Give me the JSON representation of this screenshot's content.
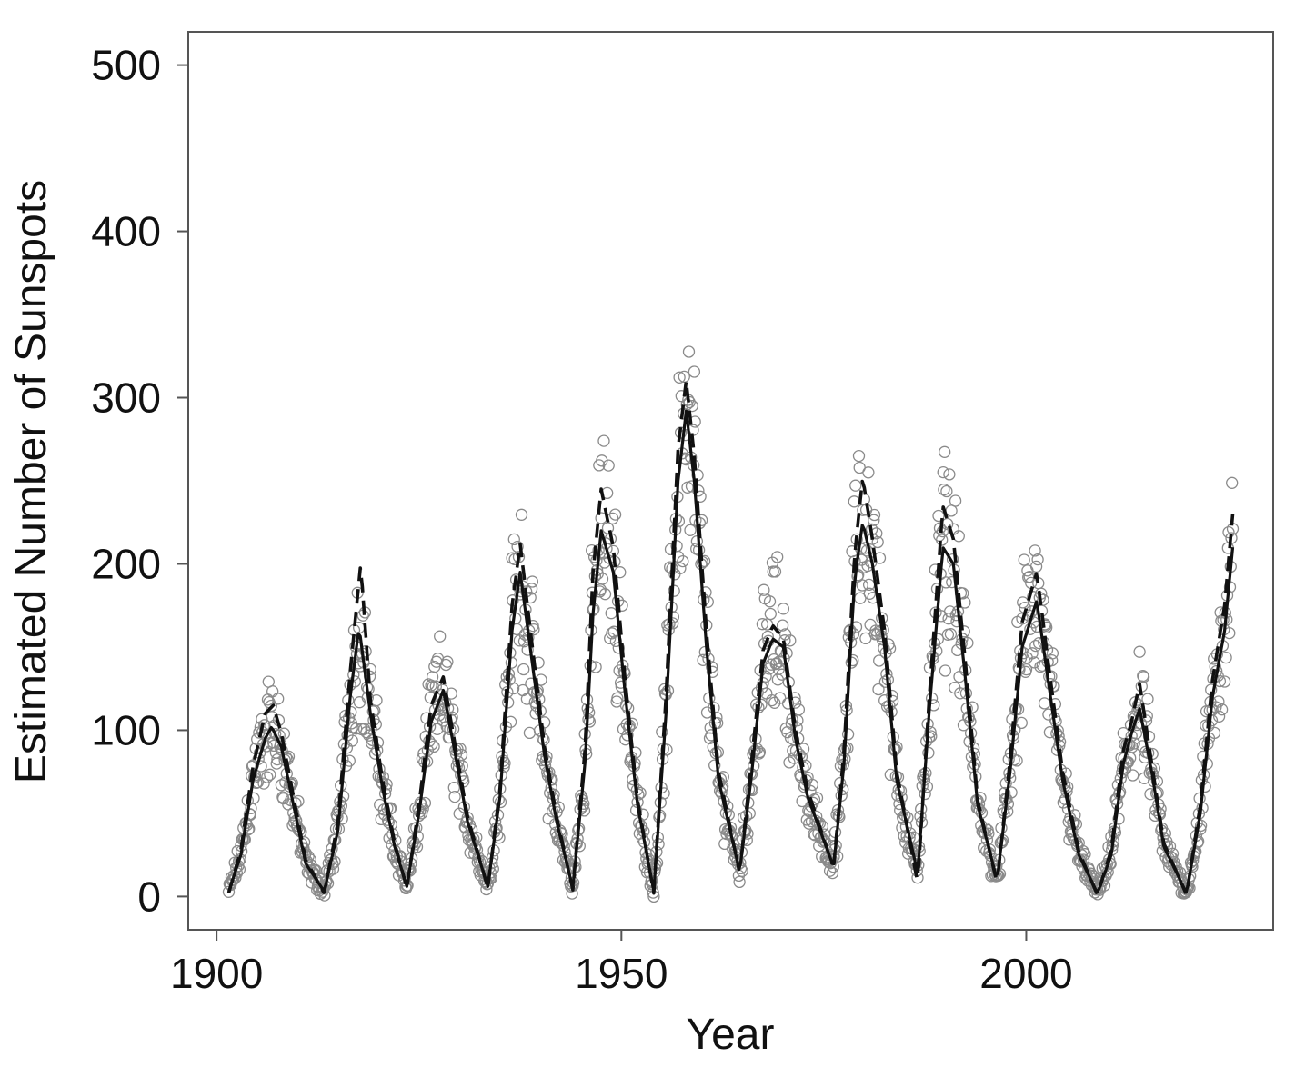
{
  "chart_data": {
    "type": "scatter",
    "title": "",
    "xlabel": "Year",
    "ylabel": "Estimated Number of Sunspots",
    "xlim": [
      1896.5,
      2030.5
    ],
    "ylim": [
      -20,
      520
    ],
    "x_ticks": [
      1900,
      1950,
      2000
    ],
    "y_ticks": [
      0,
      100,
      200,
      300,
      400,
      500
    ],
    "grid": false,
    "legend": "none",
    "colors": {
      "points": "#8a8a8a",
      "lines": "#111111",
      "axes": "#555555"
    },
    "cycle_minima": [
      [
        1901.5,
        3
      ],
      [
        1913.3,
        2
      ],
      [
        1923.5,
        6
      ],
      [
        1933.5,
        6
      ],
      [
        1944.0,
        5
      ],
      [
        1954.0,
        3
      ],
      [
        1964.6,
        14
      ],
      [
        1976.2,
        18
      ],
      [
        1986.6,
        13
      ],
      [
        1996.4,
        10
      ],
      [
        2008.8,
        2
      ],
      [
        2019.8,
        2
      ]
    ],
    "cycle_maxima": [
      [
        1906.8,
        103
      ],
      [
        1917.6,
        160
      ],
      [
        1928.0,
        125
      ],
      [
        1937.5,
        195
      ],
      [
        1947.5,
        222
      ],
      [
        1958.0,
        292
      ],
      [
        1968.7,
        155
      ],
      [
        1979.8,
        225
      ],
      [
        1989.7,
        212
      ],
      [
        2001.3,
        178
      ],
      [
        2014.0,
        113
      ]
    ],
    "series": [
      {
        "values": [
          [
            1901.5,
            3
          ],
          [
            1903.0,
            25
          ],
          [
            1904.5,
            70
          ],
          [
            1906.0,
            95
          ],
          [
            1906.8,
            102
          ],
          [
            1908.0,
            90
          ],
          [
            1909.5,
            55
          ],
          [
            1911.0,
            20
          ],
          [
            1913.3,
            3
          ],
          [
            1915.0,
            40
          ],
          [
            1916.5,
            120
          ],
          [
            1917.6,
            162
          ],
          [
            1919.0,
            110
          ],
          [
            1920.5,
            65
          ],
          [
            1922.0,
            30
          ],
          [
            1923.5,
            6
          ],
          [
            1925.0,
            50
          ],
          [
            1926.5,
            105
          ],
          [
            1928.0,
            124
          ],
          [
            1929.5,
            85
          ],
          [
            1931.0,
            45
          ],
          [
            1933.5,
            6
          ],
          [
            1935.0,
            60
          ],
          [
            1936.5,
            160
          ],
          [
            1937.5,
            195
          ],
          [
            1939.0,
            140
          ],
          [
            1940.5,
            85
          ],
          [
            1942.0,
            45
          ],
          [
            1944.0,
            5
          ],
          [
            1945.5,
            80
          ],
          [
            1946.5,
            170
          ],
          [
            1947.5,
            220
          ],
          [
            1949.0,
            195
          ],
          [
            1950.5,
            120
          ],
          [
            1952.0,
            55
          ],
          [
            1954.0,
            3
          ],
          [
            1955.5,
            110
          ],
          [
            1957.0,
            250
          ],
          [
            1958.0,
            292
          ],
          [
            1959.0,
            250
          ],
          [
            1960.5,
            150
          ],
          [
            1962.0,
            70
          ],
          [
            1964.6,
            15
          ],
          [
            1966.0,
            70
          ],
          [
            1967.5,
            140
          ],
          [
            1968.7,
            155
          ],
          [
            1970.0,
            150
          ],
          [
            1971.5,
            95
          ],
          [
            1973.0,
            60
          ],
          [
            1976.2,
            18
          ],
          [
            1977.5,
            80
          ],
          [
            1978.8,
            190
          ],
          [
            1979.8,
            225
          ],
          [
            1981.0,
            200
          ],
          [
            1982.5,
            150
          ],
          [
            1984.0,
            70
          ],
          [
            1986.6,
            14
          ],
          [
            1988.0,
            110
          ],
          [
            1989.7,
            210
          ],
          [
            1991.0,
            200
          ],
          [
            1992.5,
            130
          ],
          [
            1994.0,
            55
          ],
          [
            1996.4,
            10
          ],
          [
            1998.0,
            75
          ],
          [
            1999.5,
            150
          ],
          [
            2001.3,
            178
          ],
          [
            2003.0,
            120
          ],
          [
            2004.5,
            70
          ],
          [
            2006.5,
            25
          ],
          [
            2008.8,
            2
          ],
          [
            2010.5,
            25
          ],
          [
            2012.0,
            80
          ],
          [
            2013.0,
            98
          ],
          [
            2014.0,
            113
          ],
          [
            2015.5,
            75
          ],
          [
            2017.0,
            30
          ],
          [
            2019.8,
            2
          ],
          [
            2021.5,
            50
          ],
          [
            2023.0,
            120
          ],
          [
            2024.5,
            160
          ],
          [
            2025.5,
            210
          ]
        ]
      },
      {
        "values": [
          [
            1901.5,
            2
          ],
          [
            1903.0,
            28
          ],
          [
            1904.5,
            78
          ],
          [
            1906.0,
            110
          ],
          [
            1907.0,
            115
          ],
          [
            1908.0,
            98
          ],
          [
            1909.5,
            60
          ],
          [
            1911.0,
            22
          ],
          [
            1913.3,
            2
          ],
          [
            1915.0,
            45
          ],
          [
            1916.5,
            135
          ],
          [
            1917.8,
            200
          ],
          [
            1919.0,
            118
          ],
          [
            1920.5,
            70
          ],
          [
            1922.0,
            32
          ],
          [
            1923.5,
            5
          ],
          [
            1925.0,
            55
          ],
          [
            1926.5,
            115
          ],
          [
            1928.0,
            132
          ],
          [
            1929.5,
            90
          ],
          [
            1931.0,
            48
          ],
          [
            1933.5,
            5
          ],
          [
            1935.0,
            65
          ],
          [
            1936.5,
            175
          ],
          [
            1937.5,
            212
          ],
          [
            1939.0,
            150
          ],
          [
            1940.5,
            90
          ],
          [
            1942.0,
            48
          ],
          [
            1944.0,
            4
          ],
          [
            1945.5,
            88
          ],
          [
            1946.5,
            195
          ],
          [
            1947.5,
            245
          ],
          [
            1949.0,
            210
          ],
          [
            1950.5,
            128
          ],
          [
            1952.0,
            58
          ],
          [
            1954.0,
            2
          ],
          [
            1955.5,
            120
          ],
          [
            1957.0,
            270
          ],
          [
            1958.0,
            310
          ],
          [
            1959.0,
            265
          ],
          [
            1960.5,
            160
          ],
          [
            1962.0,
            75
          ],
          [
            1964.6,
            14
          ],
          [
            1966.0,
            78
          ],
          [
            1967.5,
            148
          ],
          [
            1968.7,
            163
          ],
          [
            1970.0,
            155
          ],
          [
            1971.5,
            100
          ],
          [
            1973.0,
            64
          ],
          [
            1976.2,
            17
          ],
          [
            1977.5,
            88
          ],
          [
            1978.8,
            205
          ],
          [
            1979.8,
            252
          ],
          [
            1981.0,
            215
          ],
          [
            1982.5,
            160
          ],
          [
            1984.0,
            75
          ],
          [
            1986.6,
            8
          ],
          [
            1988.0,
            118
          ],
          [
            1989.7,
            235
          ],
          [
            1991.0,
            215
          ],
          [
            1992.5,
            140
          ],
          [
            1994.0,
            58
          ],
          [
            1996.4,
            8
          ],
          [
            1998.0,
            82
          ],
          [
            1999.5,
            165
          ],
          [
            2001.3,
            195
          ],
          [
            2003.0,
            130
          ],
          [
            2004.5,
            75
          ],
          [
            2006.5,
            27
          ],
          [
            2008.8,
            1
          ],
          [
            2010.5,
            28
          ],
          [
            2012.0,
            88
          ],
          [
            2013.0,
            105
          ],
          [
            2014.0,
            128
          ],
          [
            2015.5,
            80
          ],
          [
            2017.0,
            32
          ],
          [
            2019.8,
            1
          ],
          [
            2021.5,
            55
          ],
          [
            2023.0,
            130
          ],
          [
            2024.5,
            175
          ],
          [
            2025.5,
            230
          ]
        ]
      }
    ]
  }
}
